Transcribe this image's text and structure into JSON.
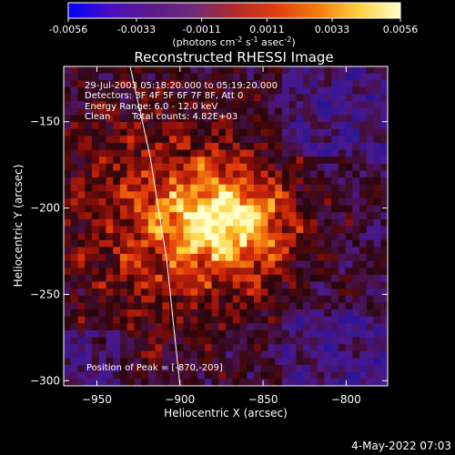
{
  "colorbar": {
    "ticks": [
      "-0.0056",
      "-0.0033",
      "-0.0011",
      "0.0011",
      "0.0033",
      "0.0056"
    ],
    "tick_values": [
      -0.0056,
      -0.0033,
      -0.0011,
      0.0011,
      0.0033,
      0.0056
    ],
    "range": [
      -0.0056,
      0.0056
    ],
    "unit_label": "(photons cm",
    "unit_exp1": "-2",
    "unit_mid": " s",
    "unit_exp2": "-1",
    "unit_mid2": " asec",
    "unit_exp3": "-2",
    "unit_end": ")",
    "colors": [
      "#0000ff",
      "#4a0fbf",
      "#5a1a8a",
      "#6e2a7a",
      "#b02a2a",
      "#e03c10",
      "#f27a0a",
      "#ffd040",
      "#ffffc8"
    ]
  },
  "chart_data": {
    "type": "heatmap",
    "title": "Reconstructed RHESSI Image",
    "xlabel": "Heliocentric X (arcsec)",
    "ylabel": "Heliocentric Y (arcsec)",
    "xlim": [
      -970,
      -775
    ],
    "ylim": [
      -303,
      -118
    ],
    "xticks": [
      -950,
      -900,
      -850,
      -800
    ],
    "yticks": [
      -150,
      -200,
      -250,
      -300
    ],
    "xtick_labels": [
      "−950",
      "−900",
      "−850",
      "−800"
    ],
    "ytick_labels": [
      "−150",
      "−200",
      "−250",
      "−300"
    ],
    "peak": {
      "x": -870,
      "y": -209
    },
    "limb_curve": [
      [
        -930,
        -118
      ],
      [
        -918,
        -170
      ],
      [
        -908,
        -230
      ],
      [
        -900,
        -303
      ]
    ],
    "annotations": {
      "time": "29-Jul-2003 05:18:20.000 to 05:19:20.000",
      "detectors": "Detectors: 3F 4F 5F 6F 7F 8F, Att 0",
      "energy": "Energy Range: 6.0 - 12.0 keV",
      "method": "Clean",
      "counts": "Total counts: 4.82E+03",
      "peak_label": "Position of Peak = [-870,-209]"
    }
  },
  "footer": {
    "date": "4-May-2022 07:03"
  }
}
